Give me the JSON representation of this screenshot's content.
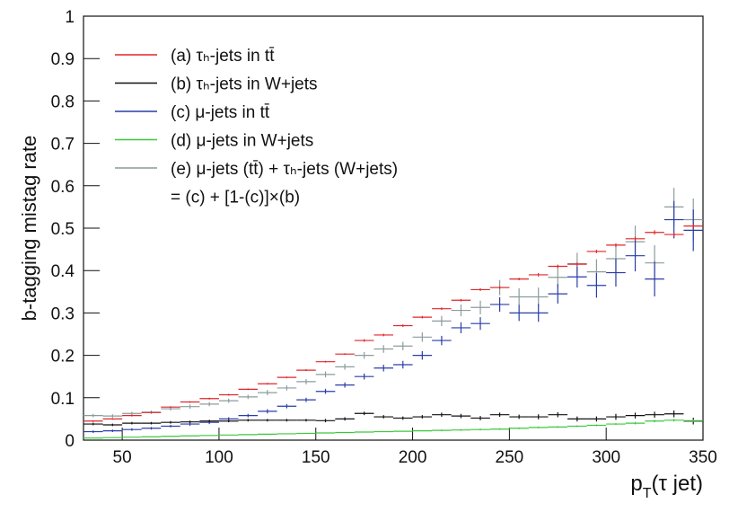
{
  "chart_data": {
    "type": "histogram",
    "y_label": "b-tagging mistag rate",
    "x_label": {
      "base": "p",
      "sub": "T",
      "rest": "(τ jet)"
    },
    "xlim": [
      30,
      350
    ],
    "xticks": [
      50,
      100,
      150,
      200,
      250,
      300,
      350
    ],
    "ylim": [
      0,
      1
    ],
    "yticks": [
      0,
      0.1,
      0.2,
      0.3,
      0.4,
      0.5,
      0.6,
      0.7,
      0.8,
      0.9,
      1
    ],
    "legend_corner": "upper-left",
    "legend_note": "= (c) + [1-(c)]×(b)",
    "bins": [
      30,
      40,
      50,
      60,
      70,
      80,
      90,
      100,
      110,
      120,
      130,
      140,
      150,
      160,
      170,
      180,
      190,
      200,
      210,
      220,
      230,
      240,
      250,
      260,
      270,
      280,
      290,
      300,
      310,
      320,
      330,
      340,
      350
    ],
    "series": [
      {
        "name": "(e) μ-jets (tt̄) + τₕ-jets (W+jets)",
        "color": "#8c9c9c",
        "values": [
          0.058,
          0.057,
          0.063,
          0.066,
          0.074,
          0.079,
          0.085,
          0.093,
          0.102,
          0.112,
          0.123,
          0.138,
          0.155,
          0.173,
          0.2,
          0.215,
          0.222,
          0.243,
          0.281,
          0.306,
          0.313,
          0.36,
          0.338,
          0.338,
          0.384,
          0.416,
          0.397,
          0.428,
          0.468,
          0.418,
          0.55,
          0.52
        ],
        "errors": [
          0.004,
          0.004,
          0.004,
          0.004,
          0.004,
          0.005,
          0.005,
          0.005,
          0.005,
          0.006,
          0.006,
          0.006,
          0.007,
          0.007,
          0.008,
          0.009,
          0.01,
          0.011,
          0.012,
          0.014,
          0.016,
          0.018,
          0.02,
          0.022,
          0.024,
          0.026,
          0.03,
          0.034,
          0.038,
          0.042,
          0.045,
          0.05
        ]
      },
      {
        "name": "(c) μ-jets in tt̄",
        "color": "#2a3da8",
        "values": [
          0.02,
          0.022,
          0.025,
          0.028,
          0.033,
          0.038,
          0.042,
          0.05,
          0.058,
          0.068,
          0.08,
          0.095,
          0.115,
          0.13,
          0.15,
          0.17,
          0.178,
          0.2,
          0.235,
          0.265,
          0.275,
          0.32,
          0.3,
          0.3,
          0.345,
          0.385,
          0.365,
          0.395,
          0.435,
          0.38,
          0.52,
          0.495
        ],
        "errors": [
          0.003,
          0.003,
          0.003,
          0.003,
          0.003,
          0.004,
          0.004,
          0.004,
          0.004,
          0.005,
          0.005,
          0.005,
          0.006,
          0.006,
          0.007,
          0.008,
          0.009,
          0.01,
          0.011,
          0.013,
          0.015,
          0.017,
          0.019,
          0.021,
          0.023,
          0.025,
          0.029,
          0.033,
          0.037,
          0.041,
          0.044,
          0.049
        ]
      },
      {
        "name": "(a) τₕ-jets in tt̄",
        "color": "#e0262b",
        "values": [
          0.045,
          0.05,
          0.058,
          0.065,
          0.078,
          0.09,
          0.098,
          0.107,
          0.12,
          0.133,
          0.148,
          0.165,
          0.185,
          0.203,
          0.235,
          0.248,
          0.27,
          0.29,
          0.31,
          0.33,
          0.355,
          0.36,
          0.38,
          0.39,
          0.41,
          0.415,
          0.445,
          0.46,
          0.475,
          0.49,
          0.485,
          0.505
        ],
        "errors": [
          0.002,
          0.002,
          0.002,
          0.002,
          0.002,
          0.002,
          0.002,
          0.002,
          0.002,
          0.002,
          0.002,
          0.002,
          0.002,
          0.002,
          0.003,
          0.003,
          0.003,
          0.003,
          0.003,
          0.003,
          0.003,
          0.003,
          0.003,
          0.004,
          0.004,
          0.004,
          0.004,
          0.004,
          0.005,
          0.005,
          0.005,
          0.005
        ]
      },
      {
        "name": "(b) τₕ-jets in W+jets",
        "color": "#111111",
        "values": [
          0.038,
          0.036,
          0.04,
          0.04,
          0.042,
          0.043,
          0.045,
          0.045,
          0.047,
          0.047,
          0.047,
          0.047,
          0.046,
          0.05,
          0.063,
          0.055,
          0.052,
          0.055,
          0.06,
          0.057,
          0.052,
          0.06,
          0.055,
          0.055,
          0.06,
          0.05,
          0.05,
          0.055,
          0.058,
          0.06,
          0.062,
          0.045
        ],
        "errors": [
          0.003,
          0.003,
          0.003,
          0.003,
          0.003,
          0.003,
          0.003,
          0.003,
          0.003,
          0.003,
          0.003,
          0.003,
          0.004,
          0.004,
          0.004,
          0.004,
          0.004,
          0.004,
          0.005,
          0.005,
          0.005,
          0.005,
          0.005,
          0.006,
          0.006,
          0.006,
          0.006,
          0.007,
          0.007,
          0.007,
          0.008,
          0.008
        ]
      },
      {
        "name": "(d) μ-jets in W+jets",
        "color": "#3cc83c",
        "values": [
          0.005,
          0.006,
          0.007,
          0.008,
          0.009,
          0.01,
          0.011,
          0.012,
          0.013,
          0.014,
          0.015,
          0.016,
          0.017,
          0.018,
          0.019,
          0.02,
          0.021,
          0.022,
          0.023,
          0.024,
          0.025,
          0.026,
          0.028,
          0.03,
          0.031,
          0.033,
          0.035,
          0.038,
          0.04,
          0.045,
          0.047,
          0.046
        ],
        "errors": [
          0.001,
          0.001,
          0.001,
          0.001,
          0.001,
          0.001,
          0.001,
          0.001,
          0.001,
          0.001,
          0.001,
          0.001,
          0.001,
          0.001,
          0.001,
          0.001,
          0.001,
          0.001,
          0.002,
          0.002,
          0.002,
          0.002,
          0.002,
          0.002,
          0.002,
          0.002,
          0.002,
          0.002,
          0.003,
          0.003,
          0.003,
          0.003
        ]
      }
    ]
  }
}
